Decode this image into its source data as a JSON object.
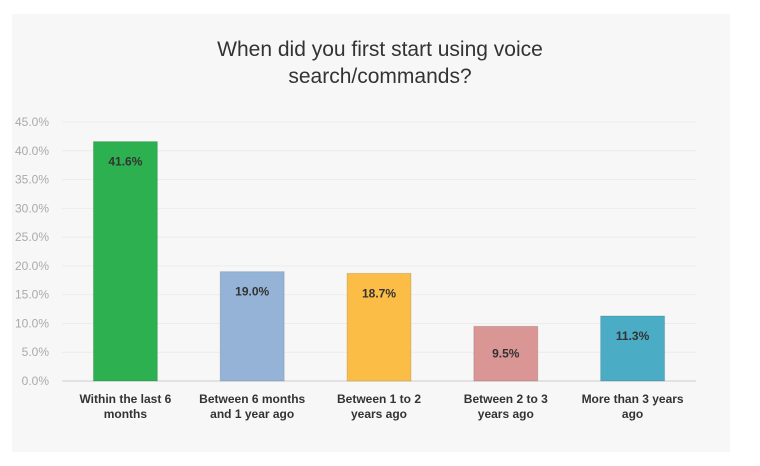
{
  "chart_data": {
    "type": "bar",
    "title_lines": [
      "When did you first start using voice",
      "search/commands?"
    ],
    "categories": [
      [
        "Within the last 6",
        "months"
      ],
      [
        "Between 6 months",
        "and 1 year ago"
      ],
      [
        "Between 1 to 2",
        "years ago"
      ],
      [
        "Between 2 to 3",
        "years ago"
      ],
      [
        "More than 3 years",
        "ago"
      ]
    ],
    "values": [
      41.6,
      19.0,
      18.7,
      9.5,
      11.3
    ],
    "data_labels": [
      "41.6%",
      "19.0%",
      "18.7%",
      "9.5%",
      "11.3%"
    ],
    "colors": [
      "#2db04f",
      "#95b3d7",
      "#fbbd46",
      "#d99694",
      "#4bacc6"
    ],
    "ylim": [
      0,
      45
    ],
    "yticks": [
      "0.0%",
      "5.0%",
      "10.0%",
      "15.0%",
      "20.0%",
      "25.0%",
      "30.0%",
      "35.0%",
      "40.0%",
      "45.0%"
    ],
    "xlabel": "",
    "ylabel": "",
    "grid": true,
    "legend": "none"
  }
}
